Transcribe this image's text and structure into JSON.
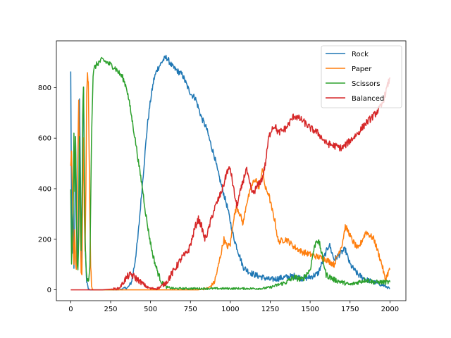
{
  "chart_data": {
    "type": "line",
    "title": "",
    "xlabel": "",
    "ylabel": "",
    "xlim": [
      -90,
      2100
    ],
    "ylim": [
      -43,
      985
    ],
    "x_ticks": [
      0,
      250,
      500,
      750,
      1000,
      1250,
      1500,
      1750,
      2000
    ],
    "x_tick_labels": [
      "0",
      "250",
      "500",
      "750",
      "1000",
      "1250",
      "1500",
      "1750",
      "2000"
    ],
    "y_ticks": [
      0,
      200,
      400,
      600,
      800
    ],
    "y_tick_labels": [
      "0",
      "200",
      "400",
      "600",
      "800"
    ],
    "grid": false,
    "legend_position": "top-right",
    "series": [
      {
        "name": "Rock",
        "color": "#1f77b4",
        "noise": 12,
        "x": [
          0,
          5,
          10,
          15,
          20,
          25,
          30,
          35,
          40,
          45,
          50,
          55,
          60,
          65,
          70,
          75,
          80,
          85,
          90,
          95,
          100,
          110,
          120,
          140,
          160,
          200,
          250,
          300,
          330,
          360,
          380,
          400,
          420,
          440,
          460,
          480,
          500,
          520,
          540,
          560,
          580,
          600,
          620,
          640,
          660,
          680,
          700,
          720,
          740,
          760,
          780,
          800,
          820,
          850,
          880,
          900,
          920,
          950,
          980,
          1000,
          1020,
          1040,
          1060,
          1080,
          1100,
          1120,
          1150,
          1200,
          1250,
          1300,
          1350,
          1400,
          1450,
          1500,
          1550,
          1600,
          1620,
          1650,
          1700,
          1720,
          1750,
          1800,
          1850,
          1900,
          1950,
          2000
        ],
        "y": [
          860,
          300,
          140,
          350,
          80,
          250,
          600,
          400,
          200,
          100,
          350,
          750,
          500,
          200,
          80,
          650,
          810,
          400,
          200,
          100,
          30,
          5,
          0,
          0,
          0,
          0,
          0,
          0,
          5,
          10,
          30,
          100,
          200,
          350,
          500,
          650,
          750,
          830,
          870,
          890,
          910,
          920,
          900,
          880,
          870,
          860,
          850,
          820,
          790,
          770,
          760,
          720,
          680,
          640,
          570,
          530,
          470,
          400,
          330,
          270,
          210,
          170,
          130,
          90,
          80,
          70,
          60,
          50,
          40,
          45,
          50,
          55,
          45,
          50,
          65,
          150,
          180,
          120,
          150,
          160,
          100,
          60,
          40,
          30,
          20,
          5
        ]
      },
      {
        "name": "Paper",
        "color": "#ff7f0e",
        "noise": 12,
        "x": [
          0,
          5,
          10,
          15,
          20,
          25,
          30,
          35,
          40,
          45,
          50,
          55,
          60,
          65,
          70,
          75,
          80,
          85,
          90,
          95,
          100,
          105,
          110,
          115,
          120,
          125,
          130,
          135,
          140,
          150,
          200,
          300,
          400,
          500,
          700,
          800,
          850,
          870,
          900,
          920,
          940,
          960,
          980,
          1000,
          1020,
          1040,
          1060,
          1080,
          1100,
          1120,
          1140,
          1160,
          1180,
          1200,
          1220,
          1240,
          1260,
          1280,
          1300,
          1350,
          1400,
          1450,
          1500,
          1550,
          1600,
          1650,
          1700,
          1720,
          1740,
          1760,
          1800,
          1850,
          1900,
          1950,
          1970,
          1990,
          2000
        ],
        "y": [
          480,
          540,
          400,
          200,
          90,
          250,
          120,
          80,
          300,
          560,
          760,
          500,
          250,
          80,
          60,
          400,
          600,
          300,
          150,
          400,
          780,
          850,
          820,
          550,
          300,
          100,
          20,
          5,
          0,
          0,
          0,
          0,
          0,
          0,
          0,
          0,
          5,
          10,
          30,
          80,
          140,
          200,
          170,
          180,
          280,
          330,
          300,
          260,
          340,
          380,
          420,
          440,
          400,
          480,
          400,
          380,
          320,
          270,
          190,
          200,
          170,
          150,
          140,
          130,
          120,
          100,
          180,
          250,
          230,
          200,
          160,
          230,
          200,
          100,
          40,
          70,
          80
        ]
      },
      {
        "name": "Scissors",
        "color": "#2ca02c",
        "noise": 12,
        "x": [
          0,
          5,
          10,
          15,
          20,
          25,
          30,
          35,
          40,
          45,
          50,
          55,
          60,
          65,
          70,
          75,
          80,
          85,
          90,
          95,
          100,
          105,
          110,
          115,
          120,
          130,
          140,
          150,
          175,
          200,
          225,
          250,
          275,
          300,
          325,
          350,
          370,
          390,
          410,
          430,
          450,
          470,
          490,
          510,
          530,
          550,
          570,
          600,
          650,
          700,
          750,
          800,
          900,
          1000,
          1100,
          1200,
          1250,
          1300,
          1350,
          1400,
          1450,
          1500,
          1520,
          1540,
          1560,
          1580,
          1600,
          1650,
          1700,
          1750,
          1800,
          1850,
          1900,
          1950,
          2000
        ],
        "y": [
          400,
          100,
          200,
          300,
          620,
          400,
          600,
          300,
          100,
          80,
          200,
          600,
          400,
          150,
          300,
          700,
          810,
          500,
          200,
          100,
          50,
          40,
          30,
          50,
          100,
          600,
          850,
          880,
          900,
          910,
          900,
          890,
          880,
          860,
          840,
          800,
          730,
          650,
          570,
          480,
          400,
          300,
          220,
          150,
          100,
          60,
          30,
          10,
          5,
          5,
          5,
          5,
          5,
          5,
          5,
          5,
          10,
          20,
          30,
          50,
          40,
          80,
          150,
          200,
          180,
          120,
          60,
          40,
          30,
          20,
          30,
          40,
          30,
          30,
          30
        ]
      },
      {
        "name": "Balanced",
        "color": "#d62728",
        "noise": 14,
        "x": [
          0,
          100,
          200,
          300,
          320,
          340,
          360,
          380,
          400,
          420,
          440,
          460,
          480,
          500,
          520,
          540,
          560,
          580,
          600,
          620,
          640,
          660,
          680,
          700,
          720,
          740,
          760,
          780,
          800,
          820,
          840,
          860,
          880,
          900,
          920,
          940,
          960,
          980,
          1000,
          1020,
          1040,
          1060,
          1080,
          1100,
          1120,
          1140,
          1160,
          1180,
          1200,
          1220,
          1240,
          1260,
          1280,
          1300,
          1350,
          1400,
          1450,
          1500,
          1550,
          1600,
          1650,
          1700,
          1750,
          1800,
          1850,
          1900,
          1950,
          2000
        ],
        "y": [
          0,
          0,
          0,
          5,
          20,
          40,
          55,
          60,
          50,
          40,
          30,
          20,
          10,
          5,
          5,
          5,
          10,
          20,
          30,
          50,
          70,
          90,
          110,
          130,
          140,
          160,
          200,
          250,
          280,
          250,
          200,
          230,
          280,
          320,
          350,
          380,
          420,
          470,
          480,
          400,
          330,
          380,
          430,
          480,
          420,
          380,
          400,
          420,
          440,
          500,
          600,
          640,
          650,
          620,
          640,
          690,
          670,
          640,
          620,
          580,
          570,
          560,
          590,
          620,
          660,
          690,
          730,
          840
        ]
      }
    ]
  }
}
